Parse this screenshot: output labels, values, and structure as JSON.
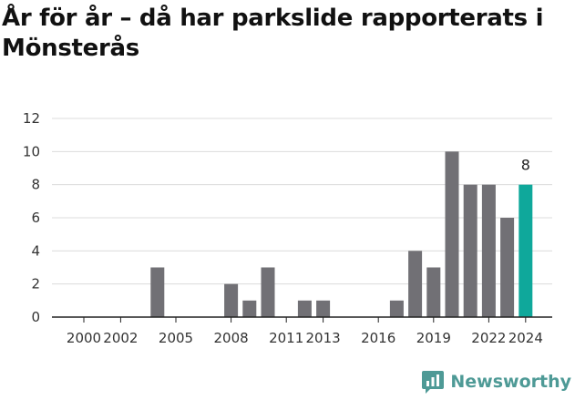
{
  "title": "År för år – då har parkslide rapporterats i Mönsterås",
  "brand": {
    "name": "Newsworthy",
    "icon": "newsworthy-logo-icon",
    "color": "#4e9a96"
  },
  "colors": {
    "bar": "#717075",
    "highlight": "#0fa89b",
    "grid": "#dcdcdc",
    "axis": "#222222"
  },
  "chart_data": {
    "type": "bar",
    "title": "",
    "xlabel": "",
    "ylabel": "",
    "ylim": [
      0,
      12
    ],
    "yticks": [
      0,
      2,
      4,
      6,
      8,
      10,
      12
    ],
    "grid": true,
    "categories": [
      2000,
      2001,
      2002,
      2003,
      2004,
      2005,
      2006,
      2007,
      2008,
      2009,
      2010,
      2011,
      2012,
      2013,
      2014,
      2015,
      2016,
      2017,
      2018,
      2019,
      2020,
      2021,
      2022,
      2023,
      2024
    ],
    "xtick_labels": [
      {
        "year": 2000,
        "label": "2000"
      },
      {
        "year": 2002,
        "label": "2002"
      },
      {
        "year": 2005,
        "label": "2005"
      },
      {
        "year": 2008,
        "label": "2008"
      },
      {
        "year": 2011,
        "label": "2011"
      },
      {
        "year": 2013,
        "label": "2013"
      },
      {
        "year": 2016,
        "label": "2016"
      },
      {
        "year": 2019,
        "label": "2019"
      },
      {
        "year": 2022,
        "label": "2022"
      },
      {
        "year": 2024,
        "label": "2024"
      }
    ],
    "values": [
      0,
      0,
      0,
      0,
      3,
      0,
      0,
      0,
      2,
      1,
      3,
      0,
      1,
      1,
      0,
      0,
      0,
      1,
      4,
      3,
      10,
      8,
      8,
      6,
      8
    ],
    "highlight": {
      "year": 2024,
      "label": "8"
    }
  }
}
